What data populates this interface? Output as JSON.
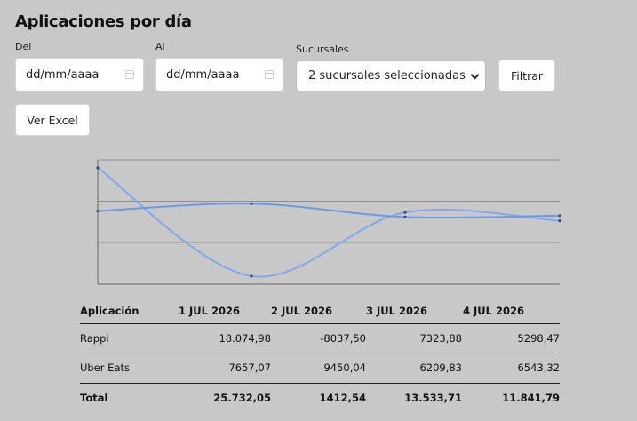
{
  "page": {
    "title": "Aplicaciones por día"
  },
  "filters": {
    "from_label": "Del",
    "to_label": "Al",
    "from_value": "dd/mm/aaaa",
    "to_value": "dd/mm/aaaa",
    "branches_label": "Sucursales",
    "branches_value": "2 sucursales seleccionadas",
    "filter_button": "Filtrar",
    "excel_button": "Ver Excel"
  },
  "colors": {
    "line_rappi": "#7fa8ee",
    "line_ubereats": "#6b99e6",
    "background": "#c8c8c8"
  },
  "chart_data": {
    "type": "line",
    "categories": [
      "1 JUL 2026",
      "2 JUL 2026",
      "3 JUL 2026",
      "4 JUL 2026"
    ],
    "series": [
      {
        "name": "Rappi",
        "values": [
          18074.98,
          -8037.5,
          7323.88,
          5298.47
        ]
      },
      {
        "name": "Uber Eats",
        "values": [
          7657.07,
          9450.04,
          6209.83,
          6543.32
        ]
      }
    ],
    "grid": true
  },
  "table": {
    "headers": [
      "Aplicación",
      "1 JUL 2026",
      "2 JUL 2026",
      "3 JUL 2026",
      "4 JUL 2026"
    ],
    "rows": [
      [
        "Rappi",
        "18.074,98",
        "-8037,50",
        "7323,88",
        "5298,47"
      ],
      [
        "Uber Eats",
        "7657,07",
        "9450,04",
        "6209,83",
        "6543,32"
      ]
    ],
    "total": [
      "Total",
      "25.732,05",
      "1412,54",
      "13.533,71",
      "11.841,79"
    ]
  }
}
